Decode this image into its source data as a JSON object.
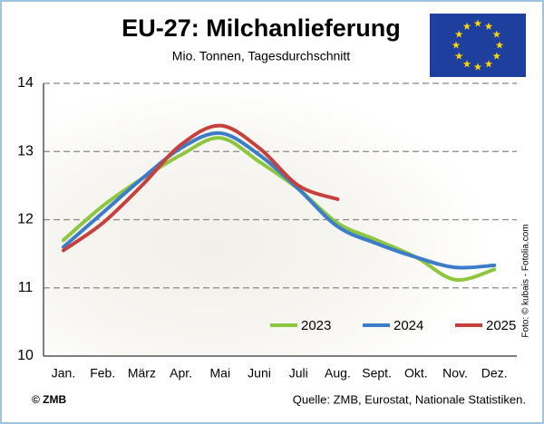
{
  "chart_data": {
    "type": "line",
    "title": "EU-27: Milchanlieferung",
    "subtitle": "Mio. Tonnen, Tagesdurchschnitt",
    "source": "Quelle: ZMB, Eurostat, Nationale Statistiken.",
    "copyright": "© ZMB",
    "photo_credit": "Foto: © kubais - Fotolia.com",
    "categories": [
      "Jan.",
      "Feb.",
      "März",
      "Apr.",
      "Mai",
      "Juni",
      "Juli",
      "Aug.",
      "Sept.",
      "Okt.",
      "Nov.",
      "Dez."
    ],
    "series": [
      {
        "name": "2023",
        "color": "#8dc63f",
        "values": [
          11.7,
          12.2,
          12.6,
          12.95,
          13.2,
          12.85,
          12.45,
          11.95,
          11.7,
          11.45,
          11.12,
          11.27
        ]
      },
      {
        "name": "2024",
        "color": "#3d7cc9",
        "values": [
          11.6,
          12.1,
          12.6,
          13.05,
          13.27,
          12.95,
          12.45,
          11.9,
          11.65,
          11.45,
          11.3,
          11.33
        ]
      },
      {
        "name": "2025",
        "color": "#c8403c",
        "values": [
          11.55,
          11.95,
          12.5,
          13.1,
          13.38,
          13.05,
          12.5,
          12.3,
          null,
          null,
          null,
          null
        ]
      }
    ],
    "ylim": [
      10,
      14
    ],
    "yticks": [
      10,
      11,
      12,
      13,
      14
    ],
    "grid": true
  }
}
